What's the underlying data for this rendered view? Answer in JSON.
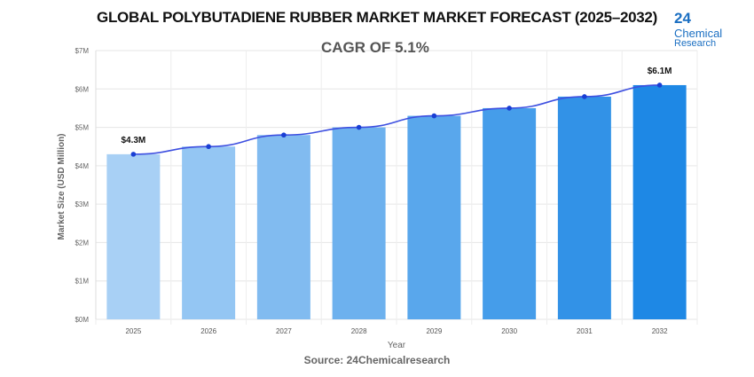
{
  "title": "GLOBAL POLYBUTADIENE RUBBER MARKET MARKET FORECAST (2025–2032)",
  "logo": {
    "number": "24",
    "line1": "Chemical",
    "line2": "Research"
  },
  "source": "Source: 24Chemicalresearch",
  "chart_data": {
    "type": "bar",
    "subtitle": "CAGR OF 5.1%",
    "categories": [
      "2025",
      "2026",
      "2027",
      "2028",
      "2029",
      "2030",
      "2031",
      "2032"
    ],
    "values": [
      4.3,
      4.5,
      4.8,
      5.0,
      5.3,
      5.5,
      5.8,
      6.1
    ],
    "line_overlay": true,
    "data_labels": {
      "0": "$4.3M",
      "7": "$6.1M"
    },
    "xlabel": "Year",
    "ylabel": "Market Size (USD Million)",
    "ylim": [
      0,
      7
    ],
    "yticks": [
      "$0M",
      "$1M",
      "$2M",
      "$3M",
      "$4M",
      "$5M",
      "$6M",
      "$7M"
    ],
    "grid": true,
    "colors": {
      "bar_start": "#a8d0f5",
      "bar_end": "#1e88e5",
      "line": "#3d4fe0",
      "marker": "#1a3fd4"
    }
  }
}
